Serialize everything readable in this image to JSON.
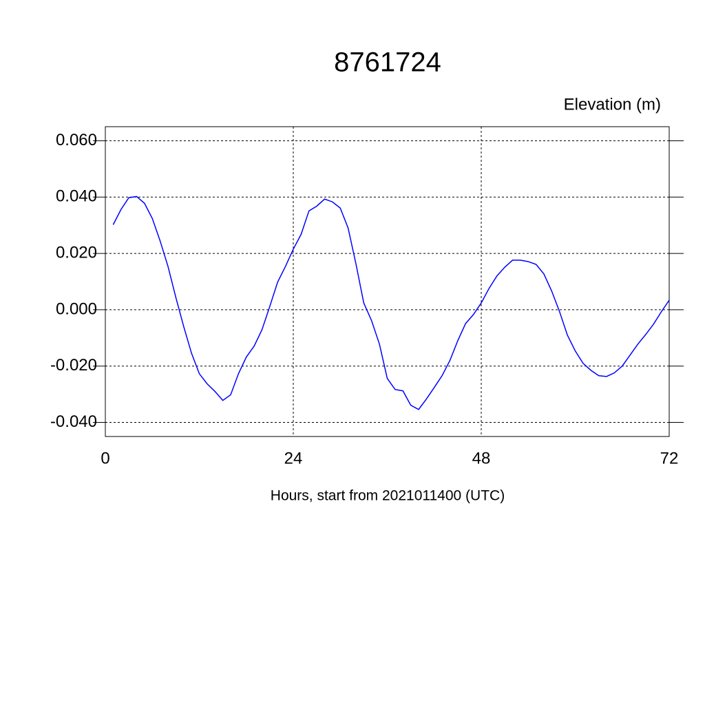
{
  "chart_data": {
    "type": "line",
    "title": "8761724",
    "ylabel": "Elevation (m)",
    "xlabel": "Hours, start from 2021011400 (UTC)",
    "x": [
      1,
      2,
      3,
      4,
      5,
      6,
      7,
      8,
      9,
      10,
      11,
      12,
      13,
      14,
      15,
      16,
      17,
      18,
      19,
      20,
      21,
      22,
      23,
      24,
      25,
      26,
      27,
      28,
      29,
      30,
      31,
      32,
      33,
      34,
      35,
      36,
      37,
      38,
      39,
      40,
      41,
      42,
      43,
      44,
      45,
      46,
      47,
      48,
      49,
      50,
      51,
      52,
      53,
      54,
      55,
      56,
      57,
      58,
      59,
      60,
      61,
      62,
      63,
      64,
      65,
      66,
      67,
      68,
      69,
      70,
      71,
      72
    ],
    "series": [
      {
        "color": "#0000ff",
        "values": [
          0.0302,
          0.0356,
          0.0398,
          0.0402,
          0.0378,
          0.0324,
          0.0244,
          0.0154,
          0.0044,
          -0.0059,
          -0.0154,
          -0.0227,
          -0.0263,
          -0.029,
          -0.0322,
          -0.0302,
          -0.0227,
          -0.0168,
          -0.0129,
          -0.0071,
          0.0012,
          0.0098,
          0.0154,
          0.0215,
          0.0268,
          0.0351,
          0.0368,
          0.0393,
          0.0383,
          0.0361,
          0.029,
          0.0163,
          0.0024,
          -0.0039,
          -0.0122,
          -0.0244,
          -0.0283,
          -0.0288,
          -0.0339,
          -0.0354,
          -0.0317,
          -0.0276,
          -0.0234,
          -0.018,
          -0.011,
          -0.0049,
          -0.0017,
          0.0024,
          0.0076,
          0.012,
          0.0151,
          0.0176,
          0.0176,
          0.0171,
          0.0161,
          0.0127,
          0.0066,
          -0.0007,
          -0.009,
          -0.0146,
          -0.019,
          -0.0215,
          -0.0234,
          -0.0237,
          -0.0224,
          -0.02,
          -0.0161,
          -0.0122,
          -0.0088,
          -0.0051,
          -0.0007,
          0.0034
        ]
      }
    ],
    "xlim": [
      0,
      72
    ],
    "xticks": [
      0,
      24,
      48,
      72
    ],
    "ylim": [
      -0.045,
      0.065
    ],
    "yticks": [
      {
        "value": -0.04,
        "label": "-0.040"
      },
      {
        "value": -0.02,
        "label": "-0.020"
      },
      {
        "value": 0,
        "label": "0.000"
      },
      {
        "value": 0.02,
        "label": "0.020"
      },
      {
        "value": 0.04,
        "label": "0.040"
      },
      {
        "value": 0.06,
        "label": "0.060"
      }
    ],
    "grid": true
  }
}
